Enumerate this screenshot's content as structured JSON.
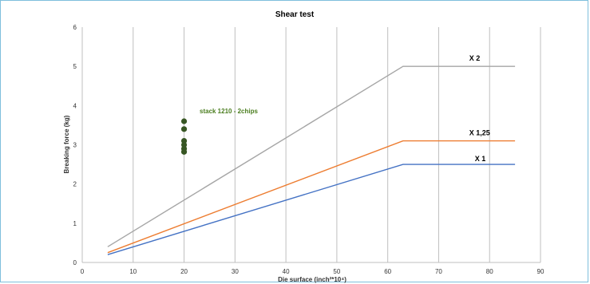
{
  "chart_data": {
    "type": "line",
    "title": "Shear test",
    "xlabel": "Die surface (inch²*10⁴)",
    "ylabel": "Breaking force (kg)",
    "xlim": [
      0,
      90
    ],
    "ylim": [
      0,
      6
    ],
    "x_ticks": [
      0,
      10,
      20,
      30,
      40,
      50,
      60,
      70,
      80,
      90
    ],
    "y_ticks": [
      0,
      1,
      2,
      3,
      4,
      5,
      6
    ],
    "grid": "vertical",
    "series": [
      {
        "name": "X 2",
        "color": "#a6a6a6",
        "points": [
          [
            5,
            0.4
          ],
          [
            63,
            5.0
          ],
          [
            85,
            5.0
          ]
        ]
      },
      {
        "name": "X 1,25",
        "color": "#ed7d31",
        "points": [
          [
            5,
            0.25
          ],
          [
            63,
            3.1
          ],
          [
            85,
            3.1
          ]
        ]
      },
      {
        "name": "X 1",
        "color": "#4472c4",
        "points": [
          [
            5,
            0.2
          ],
          [
            63,
            2.5
          ],
          [
            85,
            2.5
          ]
        ]
      }
    ],
    "scatter": {
      "name": "stack 1210 - 2chips",
      "color": "#375623",
      "points": [
        [
          20,
          3.6
        ],
        [
          20,
          3.4
        ],
        [
          20,
          3.1
        ],
        [
          20,
          3.0
        ],
        [
          20,
          2.9
        ],
        [
          20,
          2.82
        ]
      ]
    }
  }
}
